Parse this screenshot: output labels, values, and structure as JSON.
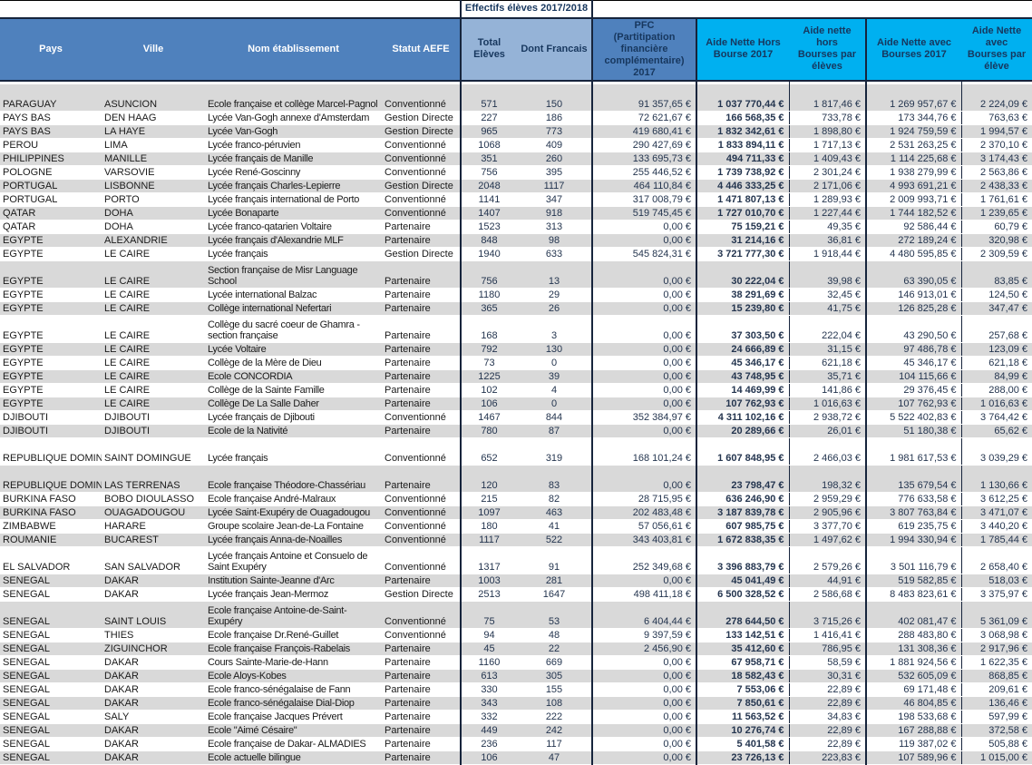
{
  "colors": {
    "header_blue": "#4F81BD",
    "header_light_blue": "#95B3D7",
    "header_cyan": "#00B0F0",
    "row_stripe_gray": "#D9D9D9",
    "border_dark_navy": "#16243C",
    "header_text_navy": "#17375E"
  },
  "header": {
    "effectifs_group": "Effectifs élèves 2017/2018",
    "columns": [
      "Pays",
      "Ville",
      "Nom établissement",
      "Statut AEFE",
      "Total Elèves",
      "Dont Francais",
      "PFC\n(Partitipation financière\ncomplémentaire) 2017",
      "Aide Nette Hors\nBourse 2017",
      "Aide nette hors\nBourses par\nélèves",
      "Aide Nette avec\nBourses 2017",
      "Aide Nette avec\nBourses par\nélève"
    ]
  },
  "rows": [
    {
      "pays": "PARAGUAY",
      "ville": "ASUNCION",
      "nom": "Ecole française et collège Marcel-Pagnol",
      "statut": "Conventionné",
      "total": "571",
      "dont": "150",
      "pfc": "91 357,65 €",
      "aide_hors": "1 037 770,44 €",
      "aide_hors_pe": "1 817,46 €",
      "aide_avec": "1 269 957,67 €",
      "aide_avec_pe": "2 224,09 €",
      "tall": true
    },
    {
      "pays": "PAYS BAS",
      "ville": "DEN HAAG",
      "nom": "Lycée Van-Gogh annexe d'Amsterdam",
      "statut": "Gestion Directe",
      "total": "227",
      "dont": "186",
      "pfc": "72 621,67 €",
      "aide_hors": "166 568,35 €",
      "aide_hors_pe": "733,78 €",
      "aide_avec": "173 344,76 €",
      "aide_avec_pe": "763,63 €"
    },
    {
      "pays": "PAYS BAS",
      "ville": "LA HAYE",
      "nom": "Lycée Van-Gogh",
      "statut": "Gestion Directe",
      "total": "965",
      "dont": "773",
      "pfc": "419 680,41 €",
      "aide_hors": "1 832 342,61 €",
      "aide_hors_pe": "1 898,80 €",
      "aide_avec": "1 924 759,59 €",
      "aide_avec_pe": "1 994,57 €"
    },
    {
      "pays": "PEROU",
      "ville": "LIMA",
      "nom": "Lycée franco-péruvien",
      "statut": "Conventionné",
      "total": "1068",
      "dont": "409",
      "pfc": "290 427,69 €",
      "aide_hors": "1 833 894,11 €",
      "aide_hors_pe": "1 717,13 €",
      "aide_avec": "2 531 263,25 €",
      "aide_avec_pe": "2 370,10 €"
    },
    {
      "pays": "PHILIPPINES",
      "ville": "MANILLE",
      "nom": "Lycée français de Manille",
      "statut": "Conventionné",
      "total": "351",
      "dont": "260",
      "pfc": "133 695,73 €",
      "aide_hors": "494 711,33 €",
      "aide_hors_pe": "1 409,43 €",
      "aide_avec": "1 114 225,68 €",
      "aide_avec_pe": "3 174,43 €"
    },
    {
      "pays": "POLOGNE",
      "ville": "VARSOVIE",
      "nom": "Lycée René-Goscinny",
      "statut": "Conventionné",
      "total": "756",
      "dont": "395",
      "pfc": "255 446,52 €",
      "aide_hors": "1 739 738,92 €",
      "aide_hors_pe": "2 301,24 €",
      "aide_avec": "1 938 279,99 €",
      "aide_avec_pe": "2 563,86 €"
    },
    {
      "pays": "PORTUGAL",
      "ville": "LISBONNE",
      "nom": "Lycée français Charles-Lepierre",
      "statut": "Gestion Directe",
      "total": "2048",
      "dont": "1117",
      "pfc": "464 110,84 €",
      "aide_hors": "4 446 333,25 €",
      "aide_hors_pe": "2 171,06 €",
      "aide_avec": "4 993 691,21 €",
      "aide_avec_pe": "2 438,33 €"
    },
    {
      "pays": "PORTUGAL",
      "ville": "PORTO",
      "nom": "Lycée français international de Porto",
      "statut": "Conventionné",
      "total": "1141",
      "dont": "347",
      "pfc": "317 008,79 €",
      "aide_hors": "1 471 807,13 €",
      "aide_hors_pe": "1 289,93 €",
      "aide_avec": "2 009 993,71 €",
      "aide_avec_pe": "1 761,61 €"
    },
    {
      "pays": "QATAR",
      "ville": "DOHA",
      "nom": "Lycée Bonaparte",
      "statut": "Conventionné",
      "total": "1407",
      "dont": "918",
      "pfc": "519 745,45 €",
      "aide_hors": "1 727 010,70 €",
      "aide_hors_pe": "1 227,44 €",
      "aide_avec": "1 744 182,52 €",
      "aide_avec_pe": "1 239,65 €"
    },
    {
      "pays": "QATAR",
      "ville": "DOHA",
      "nom": "Lycée franco-qatarien Voltaire",
      "statut": "Partenaire",
      "total": "1523",
      "dont": "313",
      "pfc": "0,00 €",
      "aide_hors": "75 159,21 €",
      "aide_hors_pe": "49,35 €",
      "aide_avec": "92 586,44 €",
      "aide_avec_pe": "60,79 €"
    },
    {
      "pays": "EGYPTE",
      "ville": "ALEXANDRIE",
      "nom": "Lycée français d'Alexandrie MLF",
      "statut": "Partenaire",
      "total": "848",
      "dont": "98",
      "pfc": "0,00 €",
      "aide_hors": "31 214,16 €",
      "aide_hors_pe": "36,81 €",
      "aide_avec": "272 189,24 €",
      "aide_avec_pe": "320,98 €"
    },
    {
      "pays": "EGYPTE",
      "ville": "LE CAIRE",
      "nom": "Lycée français",
      "statut": "Gestion Directe",
      "total": "1940",
      "dont": "633",
      "pfc": "545 824,31 €",
      "aide_hors": "3 721 777,30 €",
      "aide_hors_pe": "1 918,44 €",
      "aide_avec": "4 480 595,85 €",
      "aide_avec_pe": "2 309,59 €"
    },
    {
      "pays": "EGYPTE",
      "ville": "LE CAIRE",
      "nom": "Section française de Misr Language School",
      "statut": "Partenaire",
      "total": "756",
      "dont": "13",
      "pfc": "0,00 €",
      "aide_hors": "30 222,04 €",
      "aide_hors_pe": "39,98 €",
      "aide_avec": "63 390,05 €",
      "aide_avec_pe": "83,85 €",
      "tall": true
    },
    {
      "pays": "EGYPTE",
      "ville": "LE CAIRE",
      "nom": "Lycée international Balzac",
      "statut": "Partenaire",
      "total": "1180",
      "dont": "29",
      "pfc": "0,00 €",
      "aide_hors": "38 291,69 €",
      "aide_hors_pe": "32,45 €",
      "aide_avec": "146 913,01 €",
      "aide_avec_pe": "124,50 €"
    },
    {
      "pays": "EGYPTE",
      "ville": "LE CAIRE",
      "nom": "Collège international Nefertari",
      "statut": "Partenaire",
      "total": "365",
      "dont": "26",
      "pfc": "0,00 €",
      "aide_hors": "15 239,80 €",
      "aide_hors_pe": "41,75 €",
      "aide_avec": "126 825,28 €",
      "aide_avec_pe": "347,47 €"
    },
    {
      "pays": "EGYPTE",
      "ville": "LE CAIRE",
      "nom": "Collège du sacré coeur de Ghamra - section française",
      "statut": "Partenaire",
      "total": "168",
      "dont": "3",
      "pfc": "0,00 €",
      "aide_hors": "37 303,50 €",
      "aide_hors_pe": "222,04 €",
      "aide_avec": "43 290,50 €",
      "aide_avec_pe": "257,68 €",
      "tall": true
    },
    {
      "pays": "EGYPTE",
      "ville": "LE CAIRE",
      "nom": "Lycée Voltaire",
      "statut": "Partenaire",
      "total": "792",
      "dont": "130",
      "pfc": "0,00 €",
      "aide_hors": "24 666,89 €",
      "aide_hors_pe": "31,15 €",
      "aide_avec": "97 486,78 €",
      "aide_avec_pe": "123,09 €"
    },
    {
      "pays": "EGYPTE",
      "ville": "LE CAIRE",
      "nom": "Collège de la Mère de Dieu",
      "statut": "Partenaire",
      "total": "73",
      "dont": "0",
      "pfc": "0,00 €",
      "aide_hors": "45 346,17 €",
      "aide_hors_pe": "621,18 €",
      "aide_avec": "45 346,17 €",
      "aide_avec_pe": "621,18 €"
    },
    {
      "pays": "EGYPTE",
      "ville": "LE CAIRE",
      "nom": "Ecole CONCORDIA",
      "statut": "Partenaire",
      "total": "1225",
      "dont": "39",
      "pfc": "0,00 €",
      "aide_hors": "43 748,95 €",
      "aide_hors_pe": "35,71 €",
      "aide_avec": "104 115,66 €",
      "aide_avec_pe": "84,99 €"
    },
    {
      "pays": "EGYPTE",
      "ville": "LE CAIRE",
      "nom": "Collège de la Sainte Famille",
      "statut": "Partenaire",
      "total": "102",
      "dont": "4",
      "pfc": "0,00 €",
      "aide_hors": "14 469,99 €",
      "aide_hors_pe": "141,86 €",
      "aide_avec": "29 376,45 €",
      "aide_avec_pe": "288,00 €"
    },
    {
      "pays": "EGYPTE",
      "ville": "LE CAIRE",
      "nom": "Collège De La Salle Daher",
      "statut": "Partenaire",
      "total": "106",
      "dont": "0",
      "pfc": "0,00 €",
      "aide_hors": "107 762,93 €",
      "aide_hors_pe": "1 016,63 €",
      "aide_avec": "107 762,93 €",
      "aide_avec_pe": "1 016,63 €"
    },
    {
      "pays": "DJIBOUTI",
      "ville": "DJIBOUTI",
      "nom": "Lycée français de Djibouti",
      "statut": "Conventionné",
      "total": "1467",
      "dont": "844",
      "pfc": "352 384,97 €",
      "aide_hors": "4 311 102,16 €",
      "aide_hors_pe": "2 938,72 €",
      "aide_avec": "5 522 402,83 €",
      "aide_avec_pe": "3 764,42 €"
    },
    {
      "pays": "DJIBOUTI",
      "ville": "DJIBOUTI",
      "nom": "Ecole de la Nativité",
      "statut": "Partenaire",
      "total": "780",
      "dont": "87",
      "pfc": "0,00 €",
      "aide_hors": "20 289,66 €",
      "aide_hors_pe": "26,01 €",
      "aide_avec": "51 180,38 €",
      "aide_avec_pe": "65,62 €"
    },
    {
      "pays": "REPUBLIQUE DOMINICAINE",
      "ville": "SAINT DOMINGUE",
      "nom": "Lycée français",
      "statut": "Conventionné",
      "total": "652",
      "dont": "319",
      "pfc": "168 101,24 €",
      "aide_hors": "1 607 848,95 €",
      "aide_hors_pe": "2 466,03 €",
      "aide_avec": "1 981 617,53 €",
      "aide_avec_pe": "3 039,29 €",
      "tall": true
    },
    {
      "pays": "REPUBLIQUE DOMINICAINE",
      "ville": "LAS TERRENAS",
      "nom": "Ecole française Théodore-Chassériau",
      "statut": "Partenaire",
      "total": "120",
      "dont": "83",
      "pfc": "0,00 €",
      "aide_hors": "23 798,47 €",
      "aide_hors_pe": "198,32 €",
      "aide_avec": "135 679,54 €",
      "aide_avec_pe": "1 130,66 €",
      "tall": true
    },
    {
      "pays": "BURKINA FASO",
      "ville": "BOBO DIOULASSO",
      "nom": "Ecole française André-Malraux",
      "statut": "Conventionné",
      "total": "215",
      "dont": "82",
      "pfc": "28 715,95 €",
      "aide_hors": "636 246,90 €",
      "aide_hors_pe": "2 959,29 €",
      "aide_avec": "776 633,58 €",
      "aide_avec_pe": "3 612,25 €"
    },
    {
      "pays": "BURKINA FASO",
      "ville": "OUAGADOUGOU",
      "nom": "Lycée Saint-Exupéry de Ouagadougou",
      "statut": "Conventionné",
      "total": "1097",
      "dont": "463",
      "pfc": "202 483,48 €",
      "aide_hors": "3 187 839,78 €",
      "aide_hors_pe": "2 905,96 €",
      "aide_avec": "3 807 763,84 €",
      "aide_avec_pe": "3 471,07 €"
    },
    {
      "pays": "ZIMBABWE",
      "ville": "HARARE",
      "nom": "Groupe scolaire Jean-de-La Fontaine",
      "statut": "Conventionné",
      "total": "180",
      "dont": "41",
      "pfc": "57 056,61 €",
      "aide_hors": "607 985,75 €",
      "aide_hors_pe": "3 377,70 €",
      "aide_avec": "619 235,75 €",
      "aide_avec_pe": "3 440,20 €"
    },
    {
      "pays": "ROUMANIE",
      "ville": "BUCAREST",
      "nom": "Lycée français Anna-de-Noailles",
      "statut": "Conventionné",
      "total": "1117",
      "dont": "522",
      "pfc": "343 403,81 €",
      "aide_hors": "1 672 838,35 €",
      "aide_hors_pe": "1 497,62 €",
      "aide_avec": "1 994 330,94 €",
      "aide_avec_pe": "1 785,44 €"
    },
    {
      "pays": "EL SALVADOR",
      "ville": "SAN SALVADOR",
      "nom": "Lycée français Antoine et Consuelo de Saint  Exupéry",
      "statut": "Conventionné",
      "total": "1317",
      "dont": "91",
      "pfc": "252 349,68 €",
      "aide_hors": "3 396 883,79 €",
      "aide_hors_pe": "2 579,26 €",
      "aide_avec": "3 501 116,79 €",
      "aide_avec_pe": "2 658,40 €",
      "tall": true
    },
    {
      "pays": "SENEGAL",
      "ville": "DAKAR",
      "nom": "Institution Sainte-Jeanne d'Arc",
      "statut": "Partenaire",
      "total": "1003",
      "dont": "281",
      "pfc": "0,00 €",
      "aide_hors": "45 041,49 €",
      "aide_hors_pe": "44,91 €",
      "aide_avec": "519 582,85 €",
      "aide_avec_pe": "518,03 €"
    },
    {
      "pays": "SENEGAL",
      "ville": "DAKAR",
      "nom": "Lycée français Jean-Mermoz",
      "statut": "Gestion Directe",
      "total": "2513",
      "dont": "1647",
      "pfc": "498 411,18 €",
      "aide_hors": "6 500 328,52 €",
      "aide_hors_pe": "2 586,68 €",
      "aide_avec": "8 483 823,61 €",
      "aide_avec_pe": "3 375,97 €"
    },
    {
      "pays": "SENEGAL",
      "ville": "SAINT LOUIS",
      "nom": "Ecole française Antoine-de-Saint-Exupéry",
      "statut": "Conventionné",
      "total": "75",
      "dont": "53",
      "pfc": "6 404,44 €",
      "aide_hors": "278 644,50 €",
      "aide_hors_pe": "3 715,26 €",
      "aide_avec": "402 081,47 €",
      "aide_avec_pe": "5 361,09 €",
      "tall": true
    },
    {
      "pays": "SENEGAL",
      "ville": "THIES",
      "nom": "Ecole française Dr.René-Guillet",
      "statut": "Conventionné",
      "total": "94",
      "dont": "48",
      "pfc": "9 397,59 €",
      "aide_hors": "133 142,51 €",
      "aide_hors_pe": "1 416,41 €",
      "aide_avec": "288 483,80 €",
      "aide_avec_pe": "3 068,98 €"
    },
    {
      "pays": "SENEGAL",
      "ville": "ZIGUINCHOR",
      "nom": "Ecole française François-Rabelais",
      "statut": "Partenaire",
      "total": "45",
      "dont": "22",
      "pfc": "2 456,90 €",
      "aide_hors": "35 412,60 €",
      "aide_hors_pe": "786,95 €",
      "aide_avec": "131 308,36 €",
      "aide_avec_pe": "2 917,96 €"
    },
    {
      "pays": "SENEGAL",
      "ville": "DAKAR",
      "nom": "Cours Sainte-Marie-de-Hann",
      "statut": "Partenaire",
      "total": "1160",
      "dont": "669",
      "pfc": "0,00 €",
      "aide_hors": "67 958,71 €",
      "aide_hors_pe": "58,59 €",
      "aide_avec": "1 881 924,56 €",
      "aide_avec_pe": "1 622,35 €"
    },
    {
      "pays": "SENEGAL",
      "ville": "DAKAR",
      "nom": "Ecole Aloys-Kobes",
      "statut": "Partenaire",
      "total": "613",
      "dont": "305",
      "pfc": "0,00 €",
      "aide_hors": "18 582,43 €",
      "aide_hors_pe": "30,31 €",
      "aide_avec": "532 605,09 €",
      "aide_avec_pe": "868,85 €"
    },
    {
      "pays": "SENEGAL",
      "ville": "DAKAR",
      "nom": "Ecole franco-sénégalaise de Fann",
      "statut": "Partenaire",
      "total": "330",
      "dont": "155",
      "pfc": "0,00 €",
      "aide_hors": "7 553,06 €",
      "aide_hors_pe": "22,89 €",
      "aide_avec": "69 171,48 €",
      "aide_avec_pe": "209,61 €"
    },
    {
      "pays": "SENEGAL",
      "ville": "DAKAR",
      "nom": "Ecole franco-sénégalaise Dial-Diop",
      "statut": "Partenaire",
      "total": "343",
      "dont": "108",
      "pfc": "0,00 €",
      "aide_hors": "7 850,61 €",
      "aide_hors_pe": "22,89 €",
      "aide_avec": "46 804,85 €",
      "aide_avec_pe": "136,46 €"
    },
    {
      "pays": "SENEGAL",
      "ville": "SALY",
      "nom": "Ecole française Jacques Prévert",
      "statut": "Partenaire",
      "total": "332",
      "dont": "222",
      "pfc": "0,00 €",
      "aide_hors": "11 563,52 €",
      "aide_hors_pe": "34,83 €",
      "aide_avec": "198 533,68 €",
      "aide_avec_pe": "597,99 €"
    },
    {
      "pays": "SENEGAL",
      "ville": "DAKAR",
      "nom": "Ecole \"Aimé Césaire\"",
      "statut": "Partenaire",
      "total": "449",
      "dont": "242",
      "pfc": "0,00 €",
      "aide_hors": "10 276,74 €",
      "aide_hors_pe": "22,89 €",
      "aide_avec": "167 288,88 €",
      "aide_avec_pe": "372,58 €"
    },
    {
      "pays": "SENEGAL",
      "ville": "DAKAR",
      "nom": "Ecole française de Dakar- ALMADIES",
      "statut": "Partenaire",
      "total": "236",
      "dont": "117",
      "pfc": "0,00 €",
      "aide_hors": "5 401,58 €",
      "aide_hors_pe": "22,89 €",
      "aide_avec": "119 387,02 €",
      "aide_avec_pe": "505,88 €"
    },
    {
      "pays": "SENEGAL",
      "ville": "DAKAR",
      "nom": "Ecole actuelle bilingue",
      "statut": "Partenaire",
      "total": "106",
      "dont": "47",
      "pfc": "0,00 €",
      "aide_hors": "23 726,13 €",
      "aide_hors_pe": "223,83 €",
      "aide_avec": "107 589,96 €",
      "aide_avec_pe": "1 015,00 €"
    }
  ]
}
